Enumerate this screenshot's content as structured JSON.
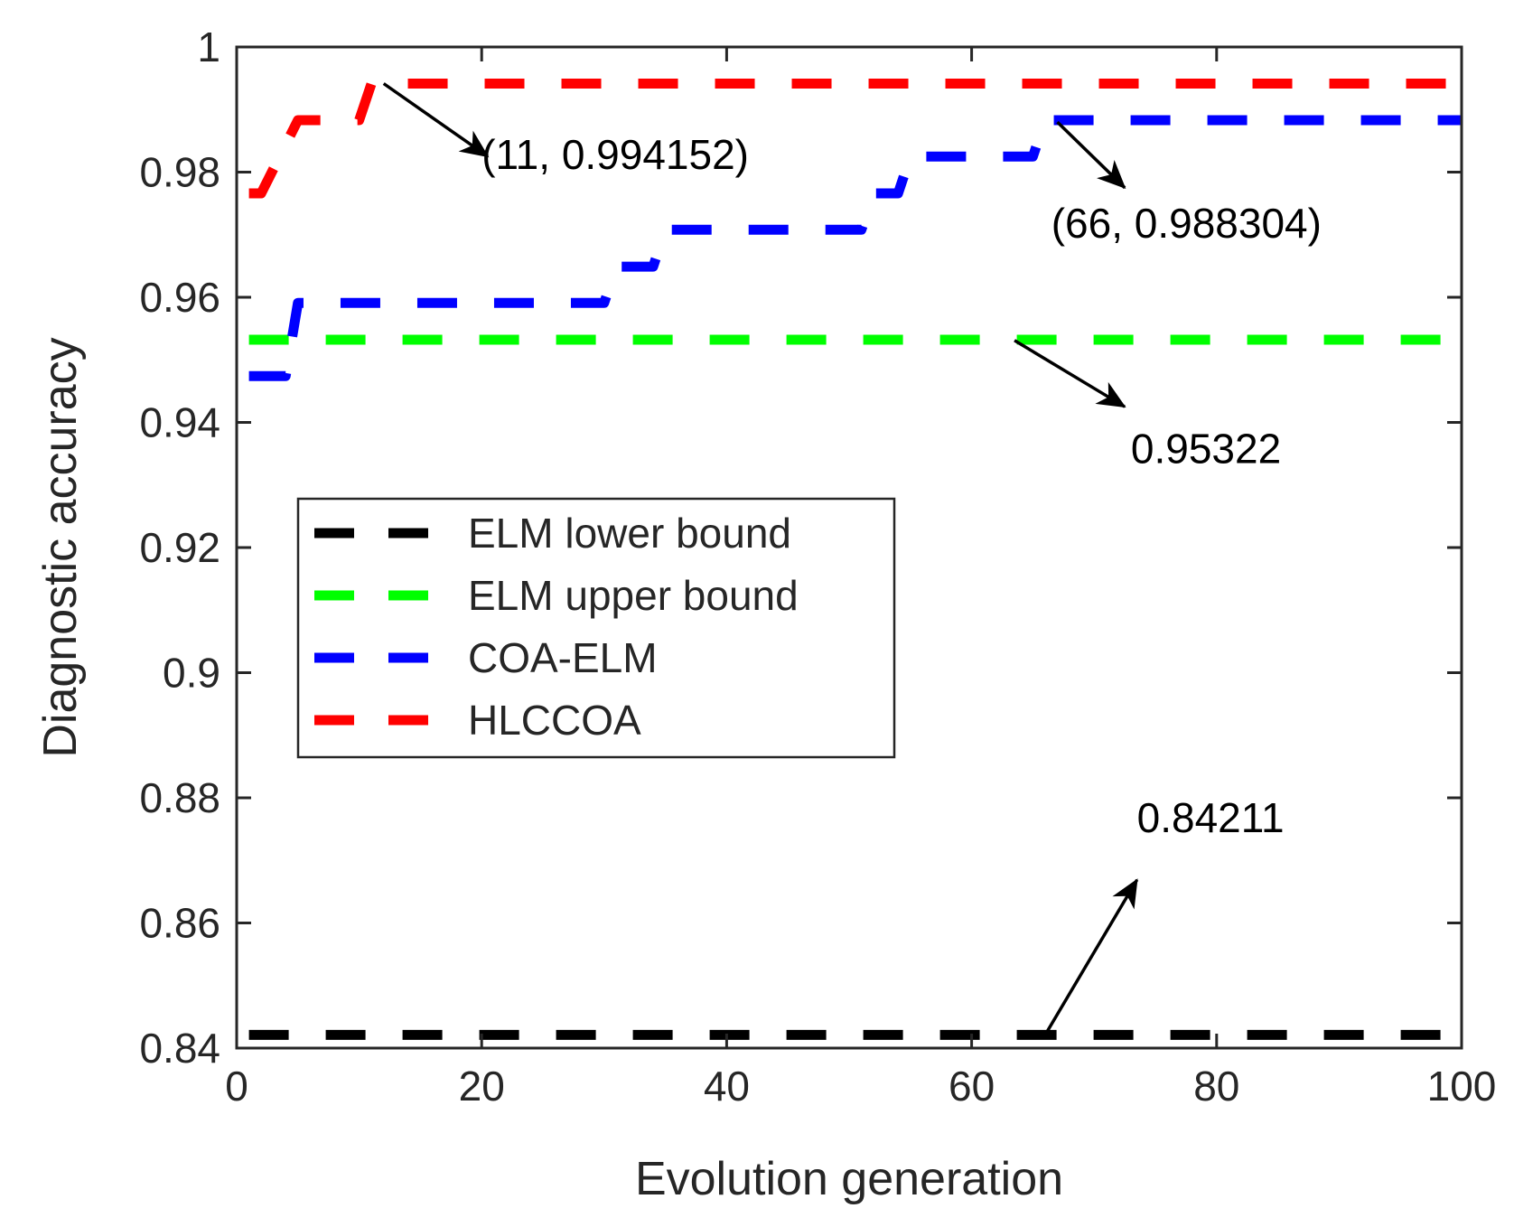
{
  "chart_data": {
    "type": "line",
    "title": "",
    "xlabel": "Evolution generation",
    "ylabel": "Diagnostic accuracy",
    "xlim": [
      0,
      100
    ],
    "ylim": [
      0.84,
      1.0
    ],
    "xticks": [
      0,
      20,
      40,
      60,
      80,
      100
    ],
    "xtick_labels": [
      "0",
      "20",
      "40",
      "60",
      "80",
      "100"
    ],
    "yticks": [
      0.84,
      0.86,
      0.88,
      0.9,
      0.92,
      0.94,
      0.96,
      0.98,
      1.0
    ],
    "ytick_labels": [
      "0.84",
      "0.86",
      "0.88",
      "0.9",
      "0.92",
      "0.94",
      "0.96",
      "0.98",
      "1"
    ],
    "grid": false,
    "legend_position": "center-left",
    "series": [
      {
        "name": "ELM lower bound",
        "color": "#000000",
        "style": "dashed",
        "x": [
          1,
          100
        ],
        "y": [
          0.84211,
          0.84211
        ]
      },
      {
        "name": "ELM upper bound",
        "color": "#00ff00",
        "style": "dashed",
        "x": [
          1,
          100
        ],
        "y": [
          0.95322,
          0.95322
        ]
      },
      {
        "name": "COA-ELM",
        "color": "#0000ff",
        "style": "dashed",
        "x": [
          1,
          4,
          5,
          30,
          31,
          34,
          35,
          51,
          52,
          54,
          55,
          65,
          66,
          100
        ],
        "y": [
          0.9474,
          0.9474,
          0.9591,
          0.9591,
          0.9649,
          0.9649,
          0.9708,
          0.9708,
          0.9766,
          0.9766,
          0.9825,
          0.9825,
          0.988304,
          0.988304
        ]
      },
      {
        "name": "HLCCOA",
        "color": "#ff0000",
        "style": "dashed",
        "x": [
          1,
          2,
          5,
          9,
          10,
          11,
          100
        ],
        "y": [
          0.9766,
          0.9766,
          0.9883,
          0.9883,
          0.9883,
          0.994152,
          0.994152
        ]
      }
    ],
    "annotations": [
      {
        "text": "(11, 0.994152)",
        "from": [
          12,
          0.994152
        ],
        "to": [
          20.5,
          0.9825
        ],
        "label_at": [
          20,
          0.9805
        ]
      },
      {
        "text": "(66, 0.988304)",
        "from": [
          67,
          0.988
        ],
        "to": [
          72.5,
          0.9775
        ],
        "label_at": [
          66.5,
          0.9695
        ]
      },
      {
        "text": "0.95322",
        "from": [
          63.5,
          0.9531
        ],
        "to": [
          72.5,
          0.9425
        ],
        "label_at": [
          73,
          0.9335
        ]
      },
      {
        "text": "0.84211",
        "from": [
          66,
          0.8421
        ],
        "to": [
          73.5,
          0.8669
        ],
        "label_at": [
          73.5,
          0.8745
        ]
      }
    ]
  }
}
